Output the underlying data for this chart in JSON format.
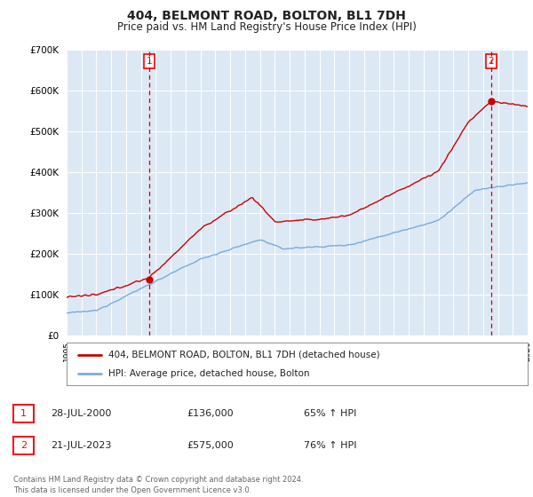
{
  "title": "404, BELMONT ROAD, BOLTON, BL1 7DH",
  "subtitle": "Price paid vs. HM Land Registry's House Price Index (HPI)",
  "ylim": [
    0,
    700000
  ],
  "yticks": [
    0,
    100000,
    200000,
    300000,
    400000,
    500000,
    600000,
    700000
  ],
  "ytick_labels": [
    "£0",
    "£100K",
    "£200K",
    "£300K",
    "£400K",
    "£500K",
    "£600K",
    "£700K"
  ],
  "background_color": "#ffffff",
  "plot_bg_color": "#dce9f5",
  "grid_color": "#ffffff",
  "red_line_color": "#cc0000",
  "blue_line_color": "#7aabdb",
  "sale1_year": 2000.57,
  "sale1_price": 136000,
  "sale2_year": 2023.55,
  "sale2_price": 575000,
  "legend_line1": "404, BELMONT ROAD, BOLTON, BL1 7DH (detached house)",
  "legend_line2": "HPI: Average price, detached house, Bolton",
  "table_row1": [
    "1",
    "28-JUL-2000",
    "£136,000",
    "65% ↑ HPI"
  ],
  "table_row2": [
    "2",
    "21-JUL-2023",
    "£575,000",
    "76% ↑ HPI"
  ],
  "footer": "Contains HM Land Registry data © Crown copyright and database right 2024.\nThis data is licensed under the Open Government Licence v3.0.",
  "xmin": 1995,
  "xmax": 2026
}
